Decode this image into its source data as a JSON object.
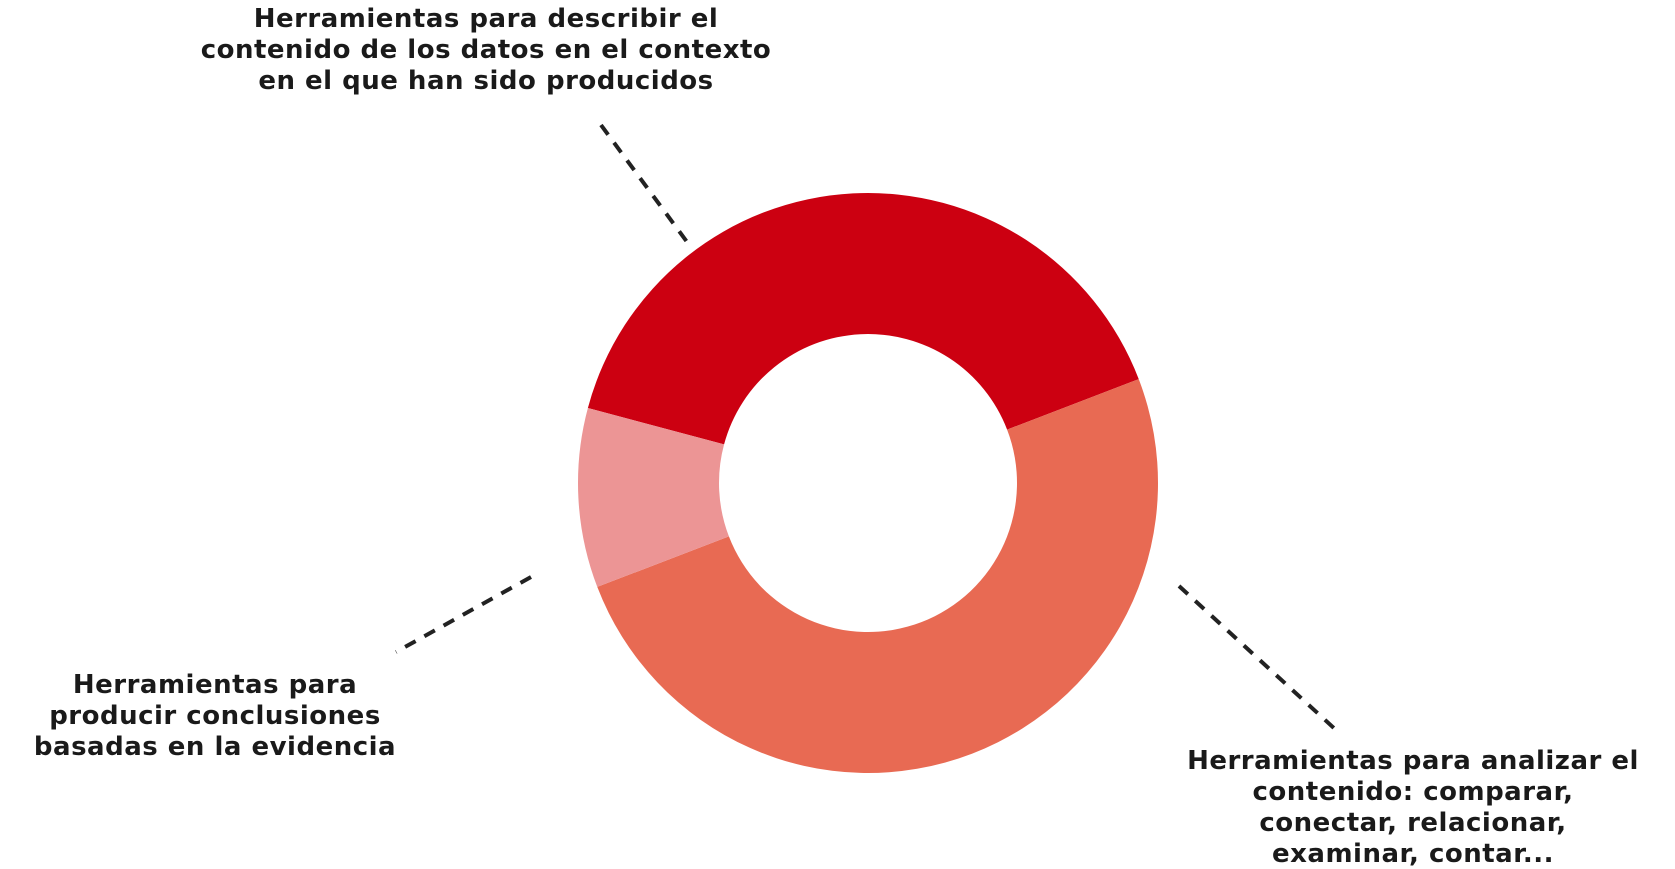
{
  "chart_data": {
    "type": "donut",
    "categories": [
      "Herramientas para describir el\ncontenido de los datos en el contexto\nen el que han sido producidos",
      "Herramientas para analizar el\ncontenido: comparar,\nconectar, relacionar,\nexaminar, contar...",
      "Herramientas para\nproducir conclusiones\nbasadas en la evidencia"
    ],
    "values": [
      40,
      50,
      10
    ],
    "colors": [
      "#cc0011",
      "#e86a53",
      "#ec9595"
    ]
  }
}
